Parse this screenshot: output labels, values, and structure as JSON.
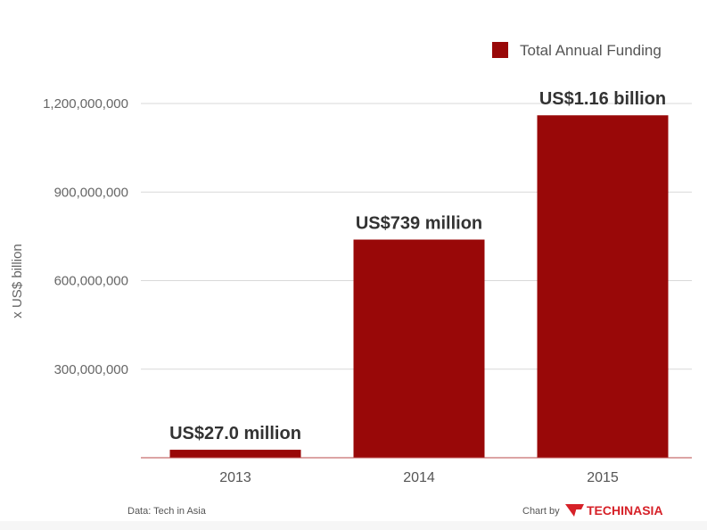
{
  "chart_data": {
    "type": "bar",
    "categories": [
      "2013",
      "2014",
      "2015"
    ],
    "series": [
      {
        "name": "Total Annual Funding",
        "values": [
          27000000,
          739000000,
          1160000000
        ]
      }
    ],
    "data_labels": [
      "US$27.0 million",
      "US$739 million",
      "US$1.16 billion"
    ],
    "ylabel": "x US$ billion",
    "xlabel": "",
    "ylim": [
      0,
      1200000000
    ],
    "yticks": [
      300000000,
      600000000,
      900000000,
      1200000000
    ],
    "ytick_labels": [
      "300,000,000",
      "600,000,000",
      "900,000,000",
      "1,200,000,000"
    ],
    "grid": true,
    "legend_position": "top-right"
  },
  "colors": {
    "bar": "#990808",
    "grid": "#d9d9d9",
    "axis": "#b94a4a",
    "brand": "#d62128"
  },
  "footer": {
    "source": "Data: Tech in Asia",
    "credit": "Chart by",
    "brand_logo_text": "TECHINASIA",
    "brand_icon": "tia-logo-icon"
  }
}
